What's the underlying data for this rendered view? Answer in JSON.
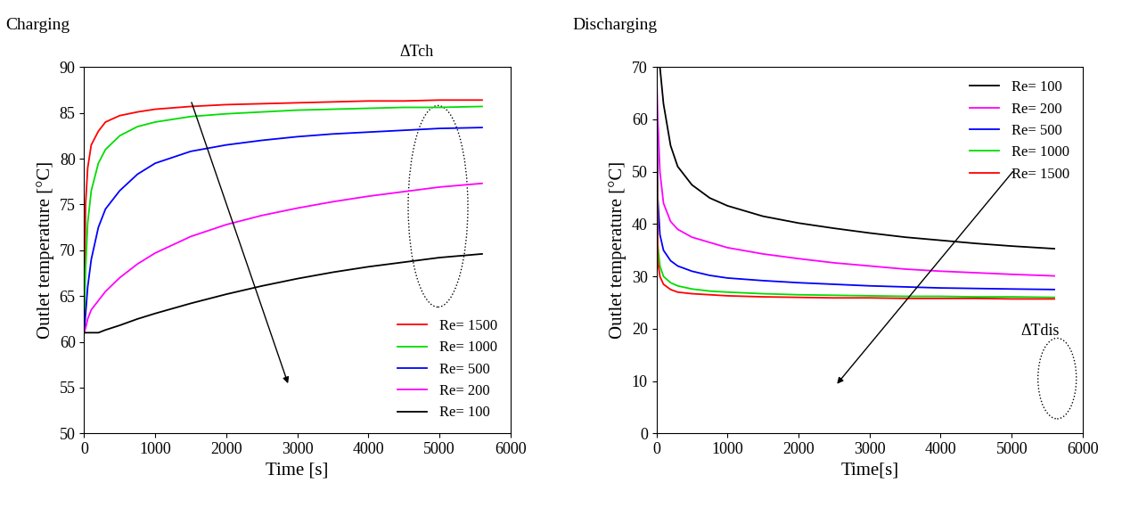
{
  "chart_data": [
    {
      "type": "line",
      "title": "Charging",
      "x_label": "Time [s]",
      "y_label": "Outlet temperature [°C]",
      "annotations": [
        "ΔTch"
      ],
      "x": [
        0,
        20,
        50,
        100,
        200,
        300,
        500,
        750,
        1000,
        1500,
        2000,
        2500,
        3000,
        3500,
        4000,
        4500,
        5000,
        5600
      ],
      "xlim": [
        0,
        6000
      ],
      "xticks": [
        0,
        1000,
        2000,
        3000,
        4000,
        5000,
        6000
      ],
      "ylim": [
        50,
        90
      ],
      "yticks": [
        50,
        55,
        60,
        65,
        70,
        75,
        80,
        85,
        90
      ],
      "grid": false,
      "legend": "lower right",
      "series": [
        {
          "name": "Re= 1500",
          "color": "#ff0000",
          "values": [
            61,
            75,
            79,
            81.5,
            83,
            84,
            84.7,
            85.1,
            85.4,
            85.7,
            85.9,
            86.0,
            86.1,
            86.2,
            86.3,
            86.3,
            86.4,
            86.4
          ]
        },
        {
          "name": "Re= 1000",
          "color": "#00dd00",
          "values": [
            61,
            68,
            73,
            76.5,
            79.5,
            81,
            82.5,
            83.5,
            84,
            84.6,
            84.9,
            85.1,
            85.3,
            85.4,
            85.5,
            85.6,
            85.6,
            85.7
          ]
        },
        {
          "name": "Re= 500",
          "color": "#0000ff",
          "values": [
            61,
            63,
            66,
            69,
            72.5,
            74.5,
            76.5,
            78.3,
            79.5,
            80.8,
            81.5,
            82,
            82.4,
            82.7,
            82.9,
            83.1,
            83.3,
            83.4
          ]
        },
        {
          "name": "Re= 200",
          "color": "#ff00ff",
          "values": [
            61,
            61.5,
            62.5,
            63.5,
            64.5,
            65.5,
            67,
            68.5,
            69.7,
            71.5,
            72.8,
            73.8,
            74.6,
            75.3,
            75.9,
            76.4,
            76.9,
            77.3
          ]
        },
        {
          "name": "Re= 100",
          "color": "#000000",
          "values": [
            61,
            61,
            61,
            61,
            61,
            61.3,
            61.8,
            62.5,
            63.1,
            64.2,
            65.2,
            66.1,
            66.9,
            67.6,
            68.2,
            68.7,
            69.2,
            69.6
          ]
        }
      ]
    },
    {
      "type": "line",
      "title": "Discharging",
      "x_label": "Time[s]",
      "y_label": "Outlet temperature [°C]",
      "annotations": [
        "ΔTdis"
      ],
      "x": [
        0,
        20,
        50,
        100,
        200,
        300,
        500,
        750,
        1000,
        1500,
        2000,
        2500,
        3000,
        3500,
        4000,
        4500,
        5000,
        5600
      ],
      "xlim": [
        0,
        6000
      ],
      "xticks": [
        0,
        1000,
        2000,
        3000,
        4000,
        5000,
        6000
      ],
      "ylim": [
        0,
        70
      ],
      "yticks": [
        0,
        10,
        20,
        30,
        40,
        50,
        60,
        70
      ],
      "grid": false,
      "legend": "upper right",
      "series": [
        {
          "name": "Re= 100",
          "color": "#000000",
          "values": [
            70,
            70,
            70,
            63,
            55,
            51,
            47.5,
            45,
            43.5,
            41.5,
            40.2,
            39.2,
            38.3,
            37.5,
            36.9,
            36.3,
            35.8,
            35.3
          ]
        },
        {
          "name": "Re= 200",
          "color": "#ff00ff",
          "values": [
            70,
            60,
            50,
            44,
            40.5,
            39,
            37.5,
            36.5,
            35.5,
            34.3,
            33.4,
            32.6,
            32,
            31.4,
            31,
            30.7,
            30.4,
            30.1
          ]
        },
        {
          "name": "Re= 500",
          "color": "#0000ff",
          "values": [
            70,
            45,
            38,
            35,
            33,
            32,
            31,
            30.2,
            29.7,
            29.2,
            28.8,
            28.5,
            28.2,
            28,
            27.8,
            27.7,
            27.6,
            27.5
          ]
        },
        {
          "name": "Re= 1000",
          "color": "#00dd00",
          "values": [
            70,
            36,
            32,
            30,
            28.8,
            28.2,
            27.6,
            27.2,
            27,
            26.7,
            26.5,
            26.4,
            26.3,
            26.2,
            26.2,
            26.1,
            26.1,
            26.0
          ]
        },
        {
          "name": "Re= 1500",
          "color": "#ff0000",
          "values": [
            70,
            33,
            30,
            28.5,
            27.5,
            27,
            26.7,
            26.5,
            26.3,
            26.1,
            26.0,
            25.9,
            25.9,
            25.8,
            25.8,
            25.8,
            25.7,
            25.7
          ]
        }
      ]
    }
  ]
}
